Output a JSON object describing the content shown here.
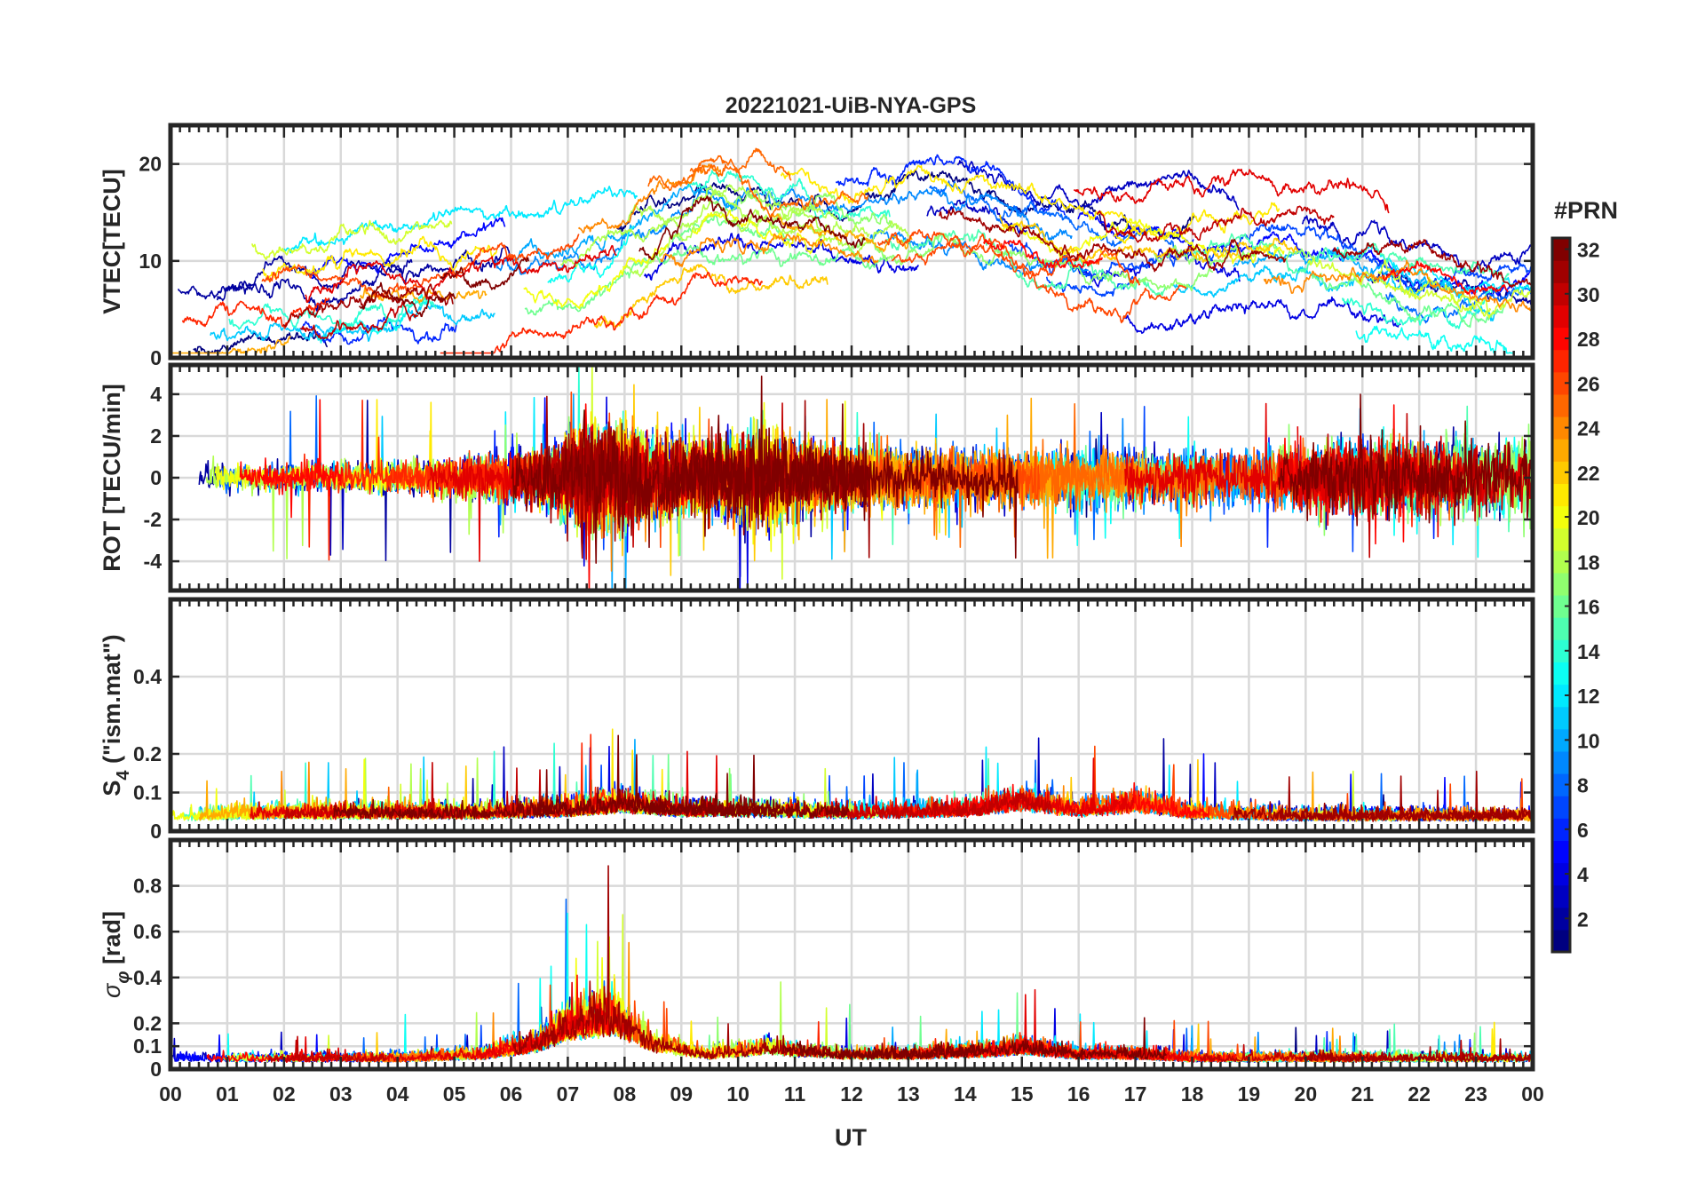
{
  "chart_data": {
    "type": "line",
    "title": "20221021-UiB-NYA-GPS",
    "xlabel": "UT",
    "x_ticks": [
      "00",
      "01",
      "02",
      "03",
      "04",
      "05",
      "06",
      "07",
      "08",
      "09",
      "10",
      "11",
      "12",
      "13",
      "14",
      "15",
      "16",
      "17",
      "18",
      "19",
      "20",
      "21",
      "22",
      "23",
      "00"
    ],
    "xlim_hours": [
      0,
      24
    ],
    "colorbar": {
      "label": "#PRN",
      "range": [
        1,
        32
      ],
      "ticks": [
        "2",
        "4",
        "6",
        "8",
        "10",
        "12",
        "14",
        "16",
        "18",
        "20",
        "22",
        "24",
        "26",
        "28",
        "30",
        "32"
      ],
      "colormap": "jet"
    },
    "panels": [
      {
        "id": "vtec",
        "ylabel": "VTEC[TECU]",
        "ylim": [
          0,
          24
        ],
        "yticks": [
          0,
          10,
          20
        ],
        "ytick_labels": [
          "0",
          "10",
          "20"
        ],
        "grid": true,
        "profile": {
          "hours": [
            0,
            2,
            4,
            5.5,
            6.5,
            7.5,
            8.5,
            9.5,
            10.5,
            11.5,
            12.5,
            13.5,
            14.5,
            15.5,
            16.5,
            17.5,
            18.5,
            19.5,
            20.5,
            21.5,
            22.5,
            23.5,
            24
          ],
          "values": [
            5,
            5.5,
            6.5,
            8,
            8.5,
            9.5,
            12.5,
            15,
            13.5,
            12.5,
            12,
            13,
            12,
            10,
            9,
            8.5,
            9,
            9.5,
            9,
            8,
            7,
            7,
            7
          ]
        },
        "spread": 3.5
      },
      {
        "id": "rot",
        "ylabel": "ROT [TECU/min]",
        "ylim": [
          -5.4,
          5.4
        ],
        "yticks": [
          -4,
          -2,
          0,
          2,
          4
        ],
        "ytick_labels": [
          "-4",
          "-2",
          "0",
          "2",
          "4"
        ],
        "grid": true,
        "profile": {
          "hours": [
            0,
            3,
            5,
            6.5,
            7.5,
            8.5,
            9.5,
            10.3,
            11.5,
            13,
            15,
            17,
            19,
            21,
            22.5,
            24
          ],
          "values": [
            0.3,
            0.3,
            0.4,
            0.6,
            1.3,
            1.0,
            0.7,
            1.1,
            0.7,
            0.6,
            0.6,
            0.6,
            0.6,
            0.8,
            0.8,
            0.8
          ]
        },
        "spread": 0.6
      },
      {
        "id": "s4",
        "ylabel": "S4 (\"ism.mat\")",
        "ylabel_main": "S",
        "ylabel_sub": "4",
        "ylabel_rest": "(\"ism.mat\")",
        "ylim": [
          0,
          0.6
        ],
        "yticks": [
          0,
          0.1,
          0.2,
          0.4
        ],
        "ytick_labels": [
          "0",
          "0.1",
          "0.2",
          "0.4"
        ],
        "grid": true,
        "profile": {
          "hours": [
            0,
            2,
            4,
            5.5,
            7,
            8,
            9,
            10,
            12,
            14,
            15,
            16,
            17,
            18,
            20,
            22,
            24
          ],
          "values": [
            0.025,
            0.03,
            0.03,
            0.03,
            0.035,
            0.045,
            0.035,
            0.035,
            0.03,
            0.035,
            0.05,
            0.035,
            0.045,
            0.03,
            0.025,
            0.025,
            0.025
          ]
        },
        "spread": 0.015
      },
      {
        "id": "sigma_phi",
        "ylabel": "σφ[rad]",
        "ylabel_main": "σ",
        "ylabel_sub": "φ",
        "ylabel_rest": "[rad]",
        "ylim": [
          0,
          1
        ],
        "yticks": [
          0,
          0.1,
          0.2,
          0.4,
          0.6,
          0.8
        ],
        "ytick_labels": [
          "0",
          "0.1",
          "0.2",
          "0.4",
          "0.6",
          "0.8"
        ],
        "grid": true,
        "profile": {
          "hours": [
            0,
            4,
            5.5,
            6.5,
            7,
            7.8,
            8.5,
            9.5,
            10.5,
            11,
            12,
            13,
            14.5,
            15,
            16,
            17,
            18,
            20,
            22,
            23,
            24
          ],
          "values": [
            0.03,
            0.03,
            0.04,
            0.07,
            0.12,
            0.14,
            0.07,
            0.04,
            0.06,
            0.05,
            0.04,
            0.04,
            0.05,
            0.06,
            0.04,
            0.04,
            0.03,
            0.03,
            0.03,
            0.03,
            0.03
          ]
        },
        "spread": 0.02
      }
    ]
  }
}
